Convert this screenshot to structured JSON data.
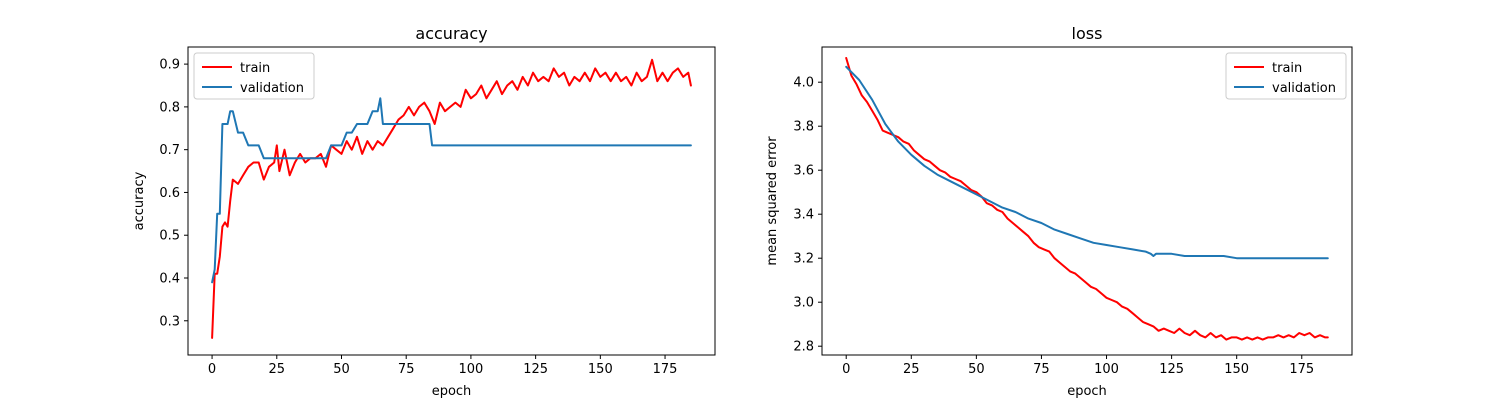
{
  "chart_data": [
    {
      "type": "line",
      "title": "accuracy",
      "xlabel": "epoch",
      "ylabel": "accuracy",
      "xlim": [
        -9.3,
        194.3
      ],
      "ylim": [
        0.22,
        0.94
      ],
      "xticks": [
        0,
        25,
        50,
        75,
        100,
        125,
        150,
        175
      ],
      "yticks": [
        0.3,
        0.4,
        0.5,
        0.6,
        0.7,
        0.8,
        0.9
      ],
      "ytick_labels": [
        "0.3",
        "0.4",
        "0.5",
        "0.6",
        "0.7",
        "0.8",
        "0.9"
      ],
      "grid": false,
      "legend_position": "upper left",
      "series": [
        {
          "name": "train",
          "color": "#ff0000",
          "x": [
            0,
            1,
            2,
            3,
            4,
            5,
            6,
            7,
            8,
            10,
            12,
            14,
            16,
            18,
            20,
            22,
            24,
            25,
            26,
            28,
            30,
            32,
            34,
            36,
            38,
            40,
            42,
            44,
            46,
            48,
            50,
            52,
            54,
            56,
            58,
            60,
            62,
            64,
            66,
            68,
            70,
            72,
            74,
            76,
            78,
            80,
            82,
            84,
            86,
            88,
            90,
            92,
            94,
            96,
            98,
            100,
            102,
            104,
            106,
            108,
            110,
            112,
            114,
            116,
            118,
            120,
            122,
            124,
            126,
            128,
            130,
            132,
            134,
            136,
            138,
            140,
            142,
            144,
            146,
            148,
            150,
            152,
            154,
            156,
            158,
            160,
            162,
            164,
            166,
            168,
            170,
            172,
            174,
            176,
            178,
            180,
            182,
            184,
            185
          ],
          "values": [
            0.26,
            0.41,
            0.41,
            0.45,
            0.52,
            0.53,
            0.52,
            0.58,
            0.63,
            0.62,
            0.64,
            0.66,
            0.67,
            0.67,
            0.63,
            0.66,
            0.67,
            0.71,
            0.65,
            0.7,
            0.64,
            0.67,
            0.69,
            0.67,
            0.68,
            0.68,
            0.69,
            0.66,
            0.71,
            0.7,
            0.69,
            0.72,
            0.7,
            0.73,
            0.69,
            0.72,
            0.7,
            0.72,
            0.71,
            0.73,
            0.75,
            0.77,
            0.78,
            0.8,
            0.78,
            0.8,
            0.81,
            0.79,
            0.76,
            0.81,
            0.79,
            0.8,
            0.81,
            0.8,
            0.84,
            0.82,
            0.83,
            0.85,
            0.82,
            0.84,
            0.86,
            0.83,
            0.85,
            0.86,
            0.84,
            0.87,
            0.85,
            0.88,
            0.86,
            0.87,
            0.86,
            0.89,
            0.87,
            0.88,
            0.85,
            0.87,
            0.86,
            0.88,
            0.86,
            0.89,
            0.87,
            0.88,
            0.86,
            0.88,
            0.86,
            0.87,
            0.85,
            0.88,
            0.86,
            0.87,
            0.91,
            0.86,
            0.88,
            0.86,
            0.88,
            0.89,
            0.87,
            0.88,
            0.85
          ]
        },
        {
          "name": "validation",
          "color": "#1f77b4",
          "x": [
            0,
            1,
            2,
            3,
            4,
            5,
            6,
            7,
            8,
            10,
            12,
            14,
            16,
            18,
            20,
            22,
            24,
            26,
            28,
            30,
            32,
            34,
            36,
            38,
            40,
            42,
            44,
            46,
            48,
            50,
            52,
            54,
            56,
            58,
            60,
            62,
            64,
            65,
            66,
            68,
            70,
            72,
            74,
            76,
            78,
            80,
            82,
            84,
            85,
            86,
            185
          ],
          "values": [
            0.39,
            0.42,
            0.55,
            0.55,
            0.76,
            0.76,
            0.76,
            0.79,
            0.79,
            0.74,
            0.74,
            0.71,
            0.71,
            0.71,
            0.68,
            0.68,
            0.68,
            0.68,
            0.68,
            0.68,
            0.68,
            0.68,
            0.68,
            0.68,
            0.68,
            0.68,
            0.68,
            0.71,
            0.71,
            0.71,
            0.74,
            0.74,
            0.76,
            0.76,
            0.76,
            0.79,
            0.79,
            0.82,
            0.76,
            0.76,
            0.76,
            0.76,
            0.76,
            0.76,
            0.76,
            0.76,
            0.76,
            0.76,
            0.71,
            0.71,
            0.71
          ]
        }
      ]
    },
    {
      "type": "line",
      "title": "loss",
      "xlabel": "epoch",
      "ylabel": "mean squared error",
      "xlim": [
        -9.3,
        194.3
      ],
      "ylim": [
        2.76,
        4.16
      ],
      "xticks": [
        0,
        25,
        50,
        75,
        100,
        125,
        150,
        175
      ],
      "yticks": [
        2.8,
        3.0,
        3.2,
        3.4,
        3.6,
        3.8,
        4.0
      ],
      "ytick_labels": [
        "2.8",
        "3.0",
        "3.2",
        "3.4",
        "3.6",
        "3.8",
        "4.0"
      ],
      "grid": false,
      "legend_position": "upper right",
      "series": [
        {
          "name": "train",
          "color": "#ff0000",
          "x": [
            0,
            1,
            2,
            4,
            6,
            8,
            10,
            12,
            14,
            16,
            18,
            20,
            22,
            24,
            26,
            28,
            30,
            32,
            34,
            36,
            38,
            40,
            42,
            44,
            46,
            48,
            50,
            52,
            54,
            56,
            58,
            60,
            62,
            64,
            66,
            68,
            70,
            72,
            74,
            76,
            78,
            80,
            82,
            84,
            86,
            88,
            90,
            92,
            94,
            96,
            98,
            100,
            102,
            104,
            106,
            108,
            110,
            112,
            114,
            116,
            118,
            120,
            122,
            124,
            126,
            128,
            130,
            132,
            134,
            136,
            138,
            140,
            142,
            144,
            146,
            148,
            150,
            152,
            154,
            156,
            158,
            160,
            162,
            164,
            166,
            168,
            170,
            172,
            174,
            176,
            178,
            180,
            182,
            184,
            185
          ],
          "values": [
            4.11,
            4.07,
            4.03,
            3.99,
            3.94,
            3.91,
            3.87,
            3.83,
            3.78,
            3.77,
            3.76,
            3.75,
            3.73,
            3.72,
            3.69,
            3.67,
            3.65,
            3.64,
            3.62,
            3.6,
            3.59,
            3.57,
            3.56,
            3.55,
            3.53,
            3.51,
            3.5,
            3.48,
            3.45,
            3.44,
            3.42,
            3.41,
            3.38,
            3.36,
            3.34,
            3.32,
            3.3,
            3.27,
            3.25,
            3.24,
            3.23,
            3.2,
            3.18,
            3.16,
            3.14,
            3.13,
            3.11,
            3.09,
            3.07,
            3.06,
            3.04,
            3.02,
            3.01,
            3.0,
            2.98,
            2.97,
            2.95,
            2.93,
            2.91,
            2.9,
            2.89,
            2.87,
            2.88,
            2.87,
            2.86,
            2.88,
            2.86,
            2.85,
            2.87,
            2.85,
            2.84,
            2.86,
            2.84,
            2.85,
            2.83,
            2.84,
            2.84,
            2.83,
            2.84,
            2.83,
            2.84,
            2.83,
            2.84,
            2.84,
            2.85,
            2.84,
            2.85,
            2.84,
            2.86,
            2.85,
            2.86,
            2.84,
            2.85,
            2.84,
            2.84
          ]
        },
        {
          "name": "validation",
          "color": "#1f77b4",
          "x": [
            0,
            5,
            10,
            15,
            20,
            25,
            30,
            35,
            40,
            45,
            50,
            55,
            60,
            65,
            70,
            75,
            80,
            85,
            90,
            95,
            100,
            105,
            110,
            115,
            117,
            118,
            119,
            120,
            125,
            130,
            135,
            140,
            145,
            150,
            155,
            160,
            165,
            170,
            175,
            180,
            185
          ],
          "values": [
            4.07,
            4.01,
            3.92,
            3.81,
            3.73,
            3.67,
            3.62,
            3.58,
            3.55,
            3.52,
            3.49,
            3.46,
            3.43,
            3.41,
            3.38,
            3.36,
            3.33,
            3.31,
            3.29,
            3.27,
            3.26,
            3.25,
            3.24,
            3.23,
            3.22,
            3.21,
            3.22,
            3.22,
            3.22,
            3.21,
            3.21,
            3.21,
            3.21,
            3.2,
            3.2,
            3.2,
            3.2,
            3.2,
            3.2,
            3.2,
            3.2
          ]
        }
      ]
    }
  ]
}
